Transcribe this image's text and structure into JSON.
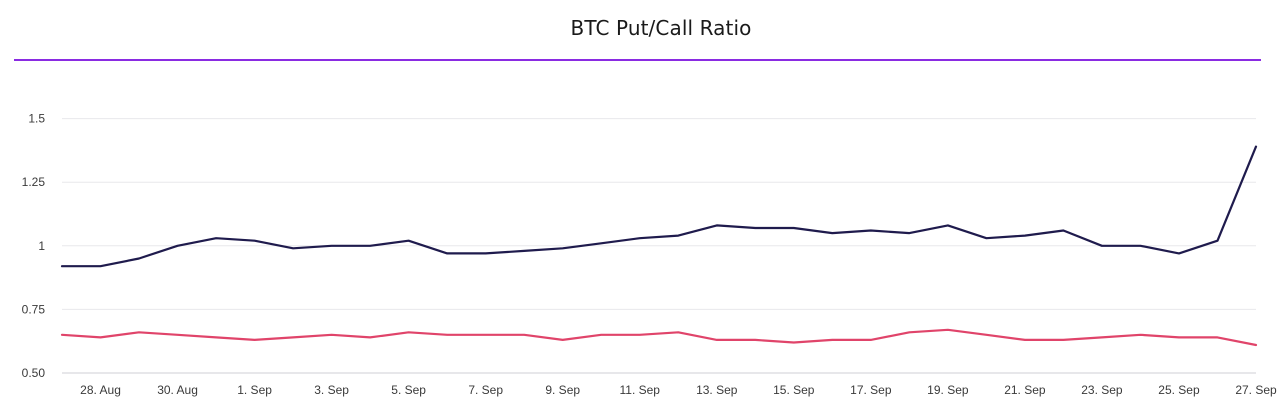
{
  "chart_data": {
    "type": "line",
    "title": "BTC Put/Call Ratio",
    "xlabel": "",
    "ylabel": "",
    "ylim": [
      0.5,
      1.75
    ],
    "yticks": [
      "0.50",
      "0.75",
      "1",
      "1.25",
      "1.5"
    ],
    "ytick_values": [
      0.5,
      0.75,
      1.0,
      1.25,
      1.5
    ],
    "xticks": [
      "28. Aug",
      "30. Aug",
      "1. Sep",
      "3. Sep",
      "5. Sep",
      "7. Sep",
      "9. Sep",
      "11. Sep",
      "13. Sep",
      "15. Sep",
      "17. Sep",
      "19. Sep",
      "21. Sep",
      "23. Sep",
      "25. Sep",
      "27. Sep"
    ],
    "x": [
      "27. Aug",
      "28. Aug",
      "29. Aug",
      "30. Aug",
      "31. Aug",
      "1. Sep",
      "2. Sep",
      "3. Sep",
      "4. Sep",
      "5. Sep",
      "6. Sep",
      "7. Sep",
      "8. Sep",
      "9. Sep",
      "10. Sep",
      "11. Sep",
      "12. Sep",
      "13. Sep",
      "14. Sep",
      "15. Sep",
      "16. Sep",
      "17. Sep",
      "18. Sep",
      "19. Sep",
      "20. Sep",
      "21. Sep",
      "22. Sep",
      "23. Sep",
      "24. Sep",
      "25. Sep",
      "26. Sep",
      "27. Sep"
    ],
    "series": [
      {
        "color": "#1f1b4d",
        "values": [
          0.92,
          0.92,
          0.95,
          1.0,
          1.03,
          1.02,
          0.99,
          1.0,
          1.0,
          1.02,
          0.97,
          0.97,
          0.98,
          0.99,
          1.01,
          1.03,
          1.04,
          1.08,
          1.07,
          1.07,
          1.05,
          1.06,
          1.05,
          1.08,
          1.03,
          1.04,
          1.06,
          1.0,
          1.0,
          0.97,
          1.02,
          1.39
        ]
      },
      {
        "color": "#e0446a",
        "values": [
          0.65,
          0.64,
          0.66,
          0.65,
          0.64,
          0.63,
          0.64,
          0.65,
          0.64,
          0.66,
          0.65,
          0.65,
          0.65,
          0.63,
          0.65,
          0.65,
          0.66,
          0.63,
          0.63,
          0.62,
          0.63,
          0.63,
          0.66,
          0.67,
          0.65,
          0.63,
          0.63,
          0.64,
          0.65,
          0.64,
          0.64,
          0.61
        ]
      }
    ],
    "grid": true,
    "legend": "none",
    "title_rule_color": "#8a2be2"
  }
}
